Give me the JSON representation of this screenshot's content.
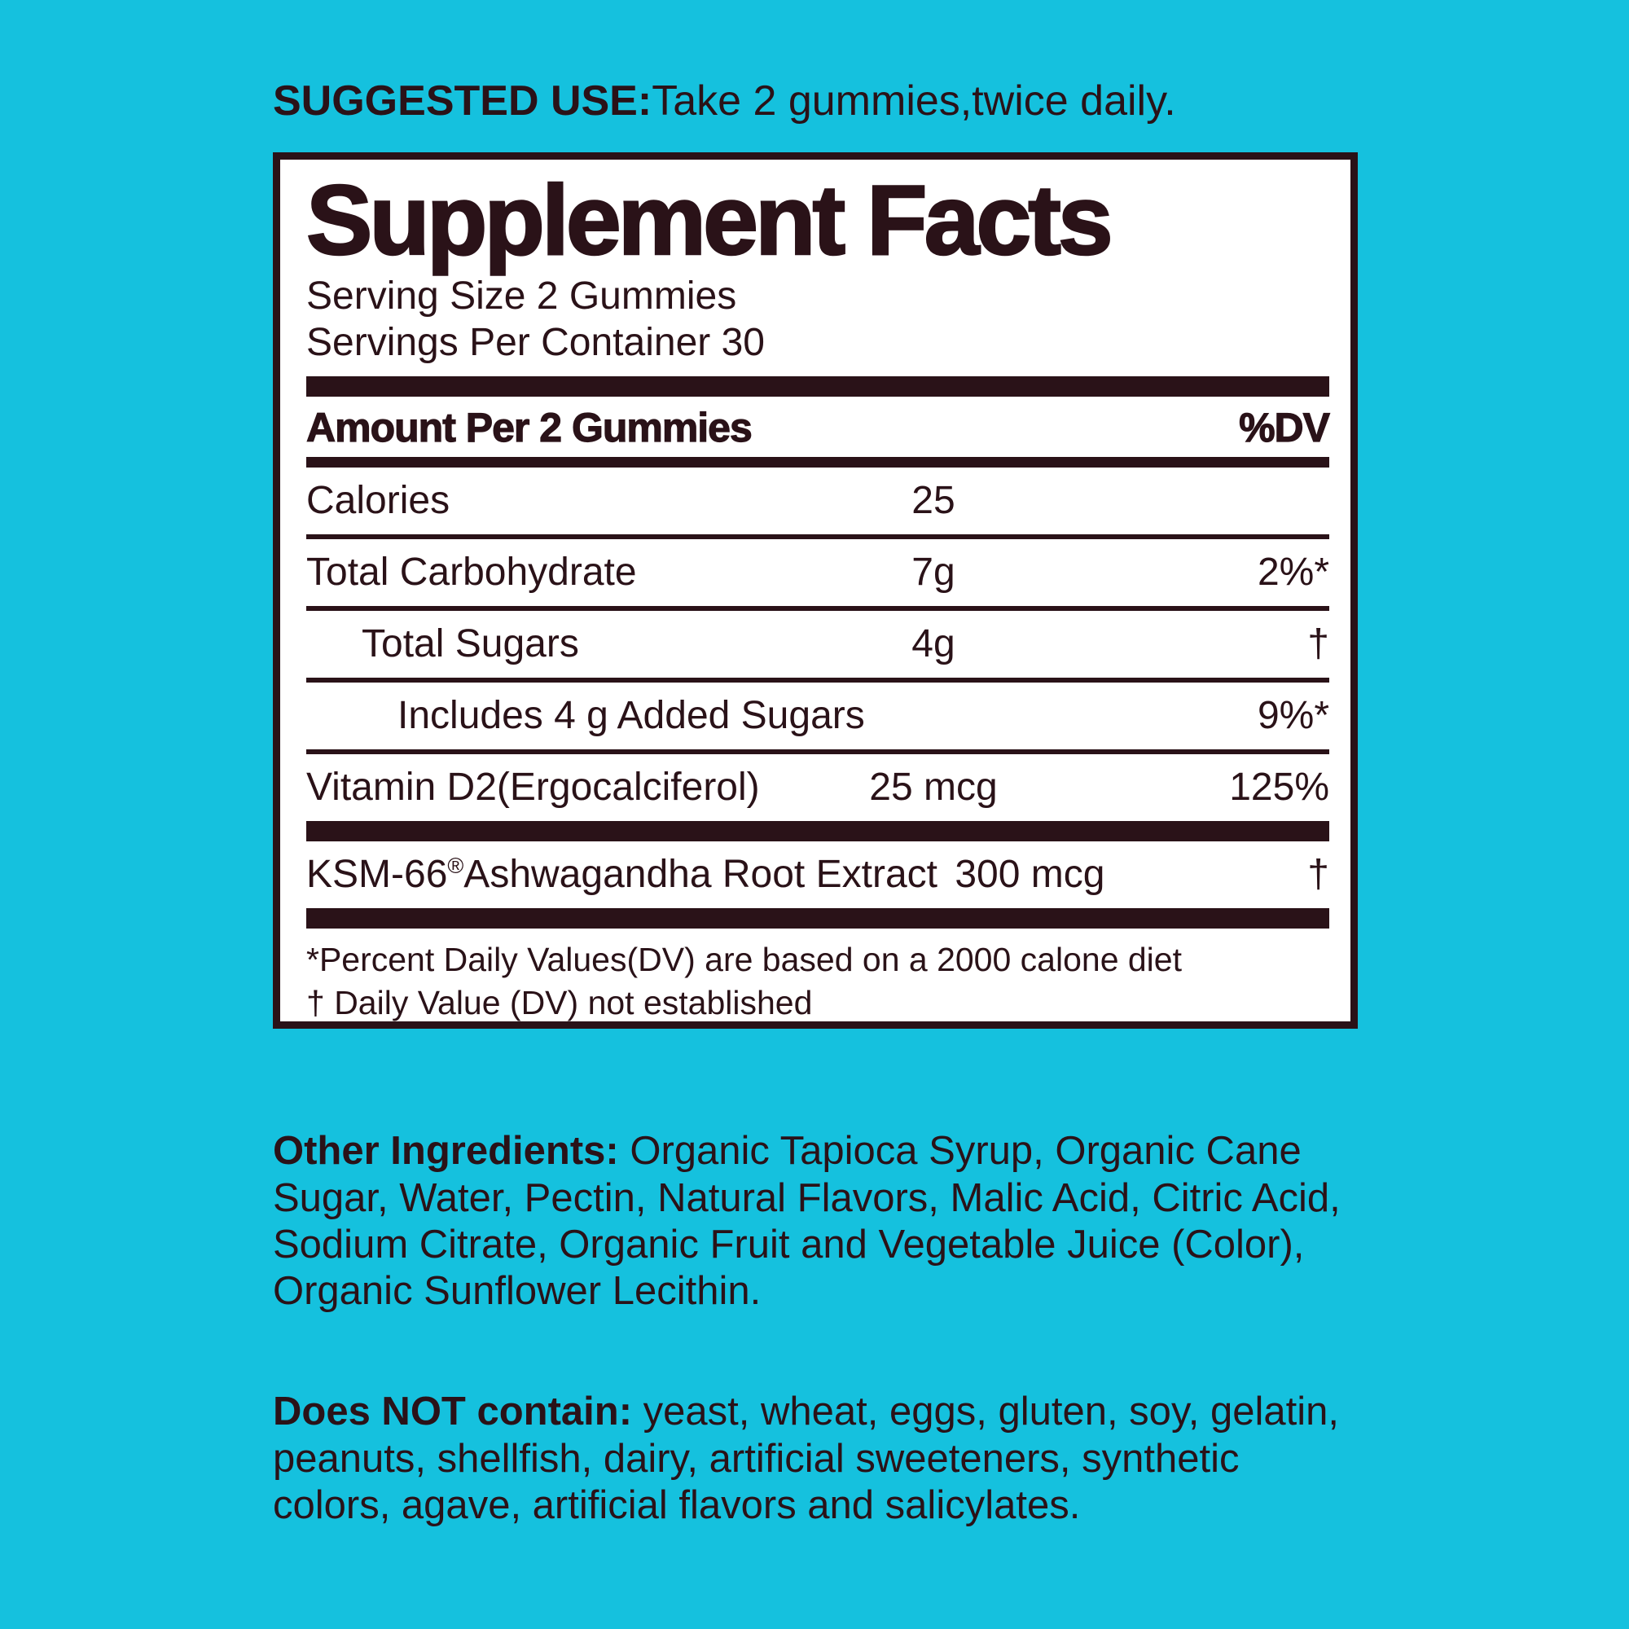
{
  "colors": {
    "background": "#15c1de",
    "ink": "#2a1218",
    "panel_background": "#ffffff"
  },
  "suggested_use": {
    "label": "SUGGESTED USE:",
    "text": "Take 2 gummies,twice daily."
  },
  "panel": {
    "title": "Supplement Facts",
    "serving_size": "Serving Size 2 Gummies",
    "servings_per_container": "Servings Per Container 30",
    "header": {
      "amount_label": "Amount Per 2 Gummies",
      "dv_label": "%DV"
    },
    "rows": [
      {
        "name": "Calories",
        "amount": "25",
        "dv": ""
      },
      {
        "name": "Total Carbohydrate",
        "amount": "7g",
        "dv": "2%*"
      },
      {
        "name": "Total Sugars",
        "amount": "4g",
        "dv": "†"
      },
      {
        "name": "Includes 4 g Added Sugars",
        "amount": "",
        "dv": "9%*"
      },
      {
        "name": "Vitamin D2(Ergocalciferol)",
        "amount": "25 mcg",
        "dv": "125%"
      },
      {
        "name_prefix": "KSM-66",
        "reg_mark": "®",
        "name_suffix": "Ashwagandha Root Extract",
        "amount": "300 mcg",
        "dv": "†"
      }
    ],
    "footnotes": [
      "*Percent Daily Values(DV) are based on a 2000 calone diet",
      "† Daily Value (DV) not established"
    ]
  },
  "other_ingredients": {
    "label": "Other Ingredients:",
    "text": " Organic Tapioca Syrup, Organic Cane\nSugar, Water, Pectin, Natural Flavors, Malic Acid, Citric Acid,\nSodium Citrate, Organic Fruit and Vegetable Juice (Color),\nOrganic Sunflower Lecithin."
  },
  "does_not_contain": {
    "label": "Does NOT contain:",
    "text": " yeast, wheat, eggs, gluten, soy, gelatin,\npeanuts, shellfish, dairy, artificial sweeteners, synthetic\ncolors, agave, artificial flavors and salicylates."
  }
}
